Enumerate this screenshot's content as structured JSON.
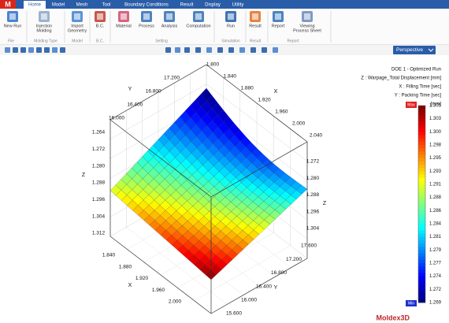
{
  "app": {
    "logo": "M",
    "tabs": [
      "Home",
      "Model",
      "Mesh",
      "Tool",
      "Boundary Conditions",
      "Result",
      "Display",
      "Utility"
    ]
  },
  "ribbon": {
    "buttons": [
      {
        "label": [
          "New Run"
        ]
      },
      {
        "label": [
          "Injection",
          "Molding"
        ]
      },
      {
        "label": [
          "Import",
          "Geometry"
        ]
      },
      {
        "label": [
          "B.C."
        ]
      },
      {
        "label": [
          "Material"
        ]
      },
      {
        "label": [
          "Process"
        ]
      },
      {
        "label": [
          "Analysis"
        ]
      },
      {
        "label": [
          "Computation"
        ]
      },
      {
        "label": [
          "Run"
        ]
      },
      {
        "label": [
          "Result"
        ]
      },
      {
        "label": [
          "Report"
        ]
      },
      {
        "label": [
          "Viewing",
          "Process Sheet"
        ]
      }
    ],
    "groups": [
      "File",
      "Molding Type",
      "Model",
      "B.C.",
      "Setting",
      "Simulation",
      "Result",
      "Report"
    ]
  },
  "view": {
    "mode": "Perspective"
  },
  "legend": {
    "lines": [
      "DOE 1 - Optimized Run",
      "Z : Warpage_Total Displacement [mm]",
      "X : Filling Time [sec]",
      "Y : Packing Time [sec]",
      "[mm]"
    ],
    "max_label": "Max",
    "min_label": "Min",
    "scale": [
      "1.305",
      "1.303",
      "1.300",
      "1.298",
      "1.295",
      "1.293",
      "1.291",
      "1.288",
      "1.286",
      "1.284",
      "1.281",
      "1.279",
      "1.277",
      "1.274",
      "1.272",
      "1.269"
    ]
  },
  "axes": {
    "top_x": {
      "label": "X",
      "ticks": [
        "1.800",
        "1.840",
        "1.880",
        "1.920",
        "1.960",
        "2.000",
        "2.040"
      ]
    },
    "top_y": {
      "label": "Y",
      "ticks": [
        "17.200",
        "16.800",
        "16.400",
        "16.000"
      ]
    },
    "left_z": {
      "label": "Z",
      "ticks": [
        "1.264",
        "1.272",
        "1.280",
        "1.288",
        "1.296",
        "1.304",
        "1.312"
      ]
    },
    "right_z": {
      "label": "Z",
      "ticks": [
        "1.272",
        "1.280",
        "1.288",
        "1.296",
        "1.304"
      ]
    },
    "bottom_x": {
      "label": "X",
      "ticks": [
        "1.840",
        "1.880",
        "1.920",
        "1.960",
        "2.000"
      ]
    },
    "bottom_y": {
      "label": "Y",
      "ticks": [
        "15.600",
        "16.000",
        "16.400",
        "16.800",
        "17.200",
        "17.600"
      ]
    }
  },
  "brand": "Moldex3D"
}
